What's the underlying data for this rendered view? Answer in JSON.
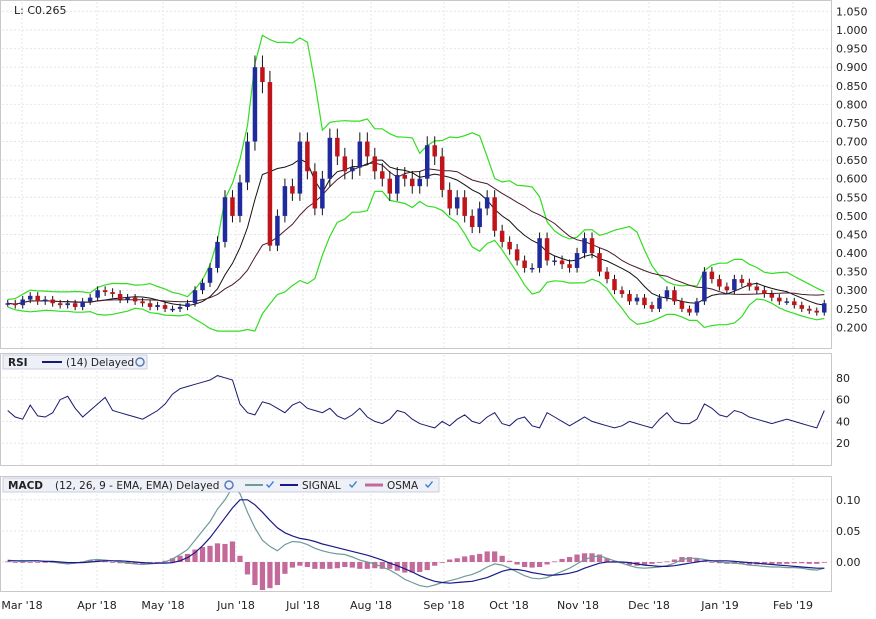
{
  "last_label": "L: C0.265",
  "price_axis": {
    "ticks": [
      1.05,
      1.0,
      0.95,
      0.9,
      0.85,
      0.8,
      0.75,
      0.7,
      0.65,
      0.6,
      0.55,
      0.5,
      0.45,
      0.4,
      0.35,
      0.3,
      0.25,
      0.2
    ],
    "labels": [
      "1.050",
      "1.000",
      "0.950",
      "0.900",
      "0.850",
      "0.800",
      "0.750",
      "0.700",
      "0.650",
      "0.600",
      "0.550",
      "0.500",
      "0.450",
      "0.400",
      "0.350",
      "0.300",
      "0.250",
      "0.200"
    ]
  },
  "rsi_panel": {
    "label": "RSI",
    "params": "(14) Delayed",
    "ticks": [
      80,
      60,
      40,
      20
    ],
    "labels": [
      "80",
      "60",
      "40",
      "20"
    ]
  },
  "macd_panel": {
    "label": "MACD",
    "params": "(12, 26, 9 - EMA, EMA) Delayed",
    "signal_label": "SIGNAL",
    "osma_label": "OSMA",
    "ticks": [
      0.1,
      0.05,
      0.0
    ],
    "labels": [
      "0.10",
      "0.05",
      "0.00"
    ]
  },
  "x_axis_labels": [
    "Mar '18",
    "Apr '18",
    "May '18",
    "Jun '18",
    "Jul '18",
    "Aug '18",
    "Sep '18",
    "Oct '18",
    "Nov '18",
    "Dec '18",
    "Jan '19",
    "Feb '19"
  ],
  "colors": {
    "up_candle": "#1f2a9c",
    "down_candle": "#c0141b",
    "bollinger": "#33dd22",
    "ma_short": "#111111",
    "ma_long": "#4a1a2a",
    "rsi_line": "#1a1a6e",
    "macd_line": "#6f9a9a",
    "signal_line": "#1a1a8a",
    "osma_bar": "#c46a9a"
  },
  "chart_data": [
    {
      "type": "candlestick",
      "title": "",
      "series_name": "Price",
      "ylim": [
        0.15,
        1.07
      ],
      "x_range": [
        "Feb '18",
        "Feb '19"
      ],
      "close": [
        0.265,
        0.26,
        0.275,
        0.285,
        0.27,
        0.275,
        0.265,
        0.26,
        0.265,
        0.255,
        0.27,
        0.28,
        0.3,
        0.295,
        0.29,
        0.275,
        0.28,
        0.27,
        0.265,
        0.255,
        0.26,
        0.25,
        0.25,
        0.255,
        0.265,
        0.3,
        0.32,
        0.36,
        0.43,
        0.55,
        0.5,
        0.59,
        0.7,
        0.9,
        0.86,
        0.42,
        0.5,
        0.58,
        0.56,
        0.7,
        0.62,
        0.52,
        0.6,
        0.71,
        0.66,
        0.62,
        0.63,
        0.7,
        0.66,
        0.62,
        0.6,
        0.56,
        0.61,
        0.6,
        0.58,
        0.6,
        0.69,
        0.66,
        0.57,
        0.52,
        0.55,
        0.5,
        0.47,
        0.52,
        0.55,
        0.46,
        0.43,
        0.41,
        0.38,
        0.36,
        0.36,
        0.44,
        0.38,
        0.38,
        0.37,
        0.36,
        0.4,
        0.44,
        0.4,
        0.35,
        0.33,
        0.3,
        0.29,
        0.27,
        0.28,
        0.26,
        0.25,
        0.28,
        0.3,
        0.27,
        0.25,
        0.24,
        0.27,
        0.35,
        0.33,
        0.31,
        0.3,
        0.33,
        0.32,
        0.31,
        0.3,
        0.29,
        0.28,
        0.27,
        0.27,
        0.26,
        0.25,
        0.245,
        0.24,
        0.265
      ],
      "upper_band_range": [
        0.28,
        1.02
      ],
      "lower_band_range": [
        0.2,
        0.48
      ]
    },
    {
      "type": "line",
      "title": "RSI",
      "series_name": "RSI (14)",
      "ylim": [
        0,
        100
      ],
      "values": [
        50,
        44,
        42,
        55,
        45,
        44,
        48,
        60,
        63,
        52,
        44,
        50,
        56,
        62,
        50,
        48,
        46,
        44,
        42,
        46,
        50,
        56,
        65,
        70,
        72,
        74,
        76,
        78,
        82,
        80,
        78,
        56,
        48,
        46,
        58,
        56,
        52,
        48,
        55,
        58,
        52,
        50,
        48,
        52,
        45,
        42,
        46,
        52,
        44,
        40,
        38,
        42,
        50,
        48,
        42,
        38,
        36,
        34,
        40,
        36,
        42,
        46,
        40,
        38,
        44,
        48,
        38,
        36,
        42,
        44,
        36,
        34,
        48,
        44,
        40,
        36,
        40,
        44,
        40,
        38,
        36,
        34,
        36,
        40,
        38,
        36,
        34,
        42,
        48,
        40,
        38,
        38,
        42,
        56,
        52,
        46,
        44,
        50,
        48,
        44,
        42,
        40,
        38,
        40,
        42,
        40,
        38,
        36,
        34,
        50
      ],
      "xlabel": "",
      "ylabel": ""
    },
    {
      "type": "line",
      "title": "MACD",
      "series": [
        {
          "name": "MACD",
          "values": [
            0.003,
            0.002,
            0.001,
            0.002,
            0.002,
            0.001,
            0.0,
            -0.002,
            -0.003,
            -0.002,
            0.0,
            0.003,
            0.004,
            0.003,
            0.002,
            0.0,
            -0.002,
            -0.003,
            -0.004,
            -0.003,
            -0.002,
            0.0,
            0.005,
            0.012,
            0.02,
            0.035,
            0.05,
            0.065,
            0.085,
            0.1,
            0.12,
            0.11,
            0.08,
            0.055,
            0.035,
            0.025,
            0.018,
            0.028,
            0.033,
            0.032,
            0.028,
            0.022,
            0.018,
            0.015,
            0.013,
            0.012,
            0.008,
            0.003,
            0.0,
            -0.003,
            -0.008,
            -0.013,
            -0.02,
            -0.028,
            -0.033,
            -0.038,
            -0.04,
            -0.037,
            -0.033,
            -0.03,
            -0.027,
            -0.023,
            -0.02,
            -0.015,
            -0.008,
            -0.003,
            -0.005,
            -0.01,
            -0.016,
            -0.022,
            -0.026,
            -0.027,
            -0.025,
            -0.02,
            -0.015,
            -0.01,
            -0.003,
            0.004,
            0.008,
            0.01,
            0.006,
            0.002,
            -0.002,
            -0.006,
            -0.009,
            -0.01,
            -0.009,
            -0.008,
            -0.006,
            -0.002,
            0.004,
            0.006,
            0.006,
            0.004,
            0.002,
            0.0,
            -0.001,
            -0.002,
            -0.003,
            -0.005,
            -0.006,
            -0.007,
            -0.008,
            -0.008,
            -0.009,
            -0.009,
            -0.01,
            -0.012,
            -0.013,
            -0.01
          ]
        },
        {
          "name": "SIGNAL",
          "values": [
            0.002,
            0.002,
            0.002,
            0.002,
            0.002,
            0.001,
            0.001,
            0.0,
            -0.001,
            -0.001,
            -0.001,
            0.0,
            0.001,
            0.002,
            0.002,
            0.002,
            0.001,
            0.0,
            -0.001,
            -0.002,
            -0.002,
            -0.002,
            -0.001,
            0.002,
            0.007,
            0.015,
            0.026,
            0.039,
            0.055,
            0.071,
            0.087,
            0.1,
            0.1,
            0.092,
            0.08,
            0.067,
            0.055,
            0.047,
            0.042,
            0.038,
            0.036,
            0.033,
            0.029,
            0.026,
            0.023,
            0.02,
            0.017,
            0.014,
            0.011,
            0.007,
            0.003,
            -0.002,
            -0.006,
            -0.011,
            -0.016,
            -0.022,
            -0.027,
            -0.031,
            -0.033,
            -0.034,
            -0.033,
            -0.032,
            -0.031,
            -0.028,
            -0.025,
            -0.02,
            -0.015,
            -0.012,
            -0.012,
            -0.014,
            -0.017,
            -0.019,
            -0.021,
            -0.021,
            -0.02,
            -0.018,
            -0.015,
            -0.01,
            -0.006,
            -0.002,
            0.0,
            0.0,
            0.0,
            -0.001,
            -0.003,
            -0.005,
            -0.006,
            -0.007,
            -0.007,
            -0.006,
            -0.004,
            -0.002,
            0.0,
            0.002,
            0.002,
            0.002,
            0.002,
            0.001,
            0.0,
            -0.001,
            -0.002,
            -0.003,
            -0.004,
            -0.005,
            -0.006,
            -0.007,
            -0.008,
            -0.009,
            -0.01,
            -0.01
          ]
        },
        {
          "name": "OSMA",
          "values": [
            0.001,
            0.0,
            -0.001,
            0.0,
            0.0,
            0.0,
            -0.001,
            -0.002,
            -0.002,
            -0.001,
            0.001,
            0.003,
            0.003,
            0.001,
            0.0,
            -0.002,
            -0.003,
            -0.003,
            -0.003,
            -0.001,
            0.0,
            0.002,
            0.006,
            0.01,
            0.013,
            0.02,
            0.024,
            0.026,
            0.03,
            0.029,
            0.033,
            0.01,
            -0.02,
            -0.037,
            -0.045,
            -0.042,
            -0.037,
            -0.019,
            -0.009,
            -0.006,
            -0.008,
            -0.011,
            -0.011,
            -0.011,
            -0.01,
            -0.008,
            -0.009,
            -0.011,
            -0.011,
            -0.01,
            -0.011,
            -0.011,
            -0.014,
            -0.017,
            -0.017,
            -0.016,
            -0.013,
            -0.006,
            0.0,
            0.004,
            0.006,
            0.009,
            0.011,
            0.013,
            0.017,
            0.017,
            0.01,
            0.002,
            -0.004,
            -0.008,
            -0.009,
            -0.008,
            -0.004,
            0.001,
            0.005,
            0.008,
            0.012,
            0.014,
            0.014,
            0.012,
            0.006,
            0.002,
            -0.002,
            -0.005,
            -0.006,
            -0.005,
            -0.003,
            -0.001,
            0.001,
            0.004,
            0.008,
            0.008,
            0.006,
            0.002,
            0.0,
            -0.002,
            -0.003,
            -0.003,
            -0.003,
            -0.004,
            -0.004,
            -0.004,
            -0.004,
            -0.003,
            -0.003,
            -0.002,
            -0.002,
            -0.003,
            -0.003,
            0.0
          ]
        }
      ],
      "ylim": [
        -0.045,
        0.135
      ],
      "xlabel": "",
      "ylabel": ""
    }
  ]
}
